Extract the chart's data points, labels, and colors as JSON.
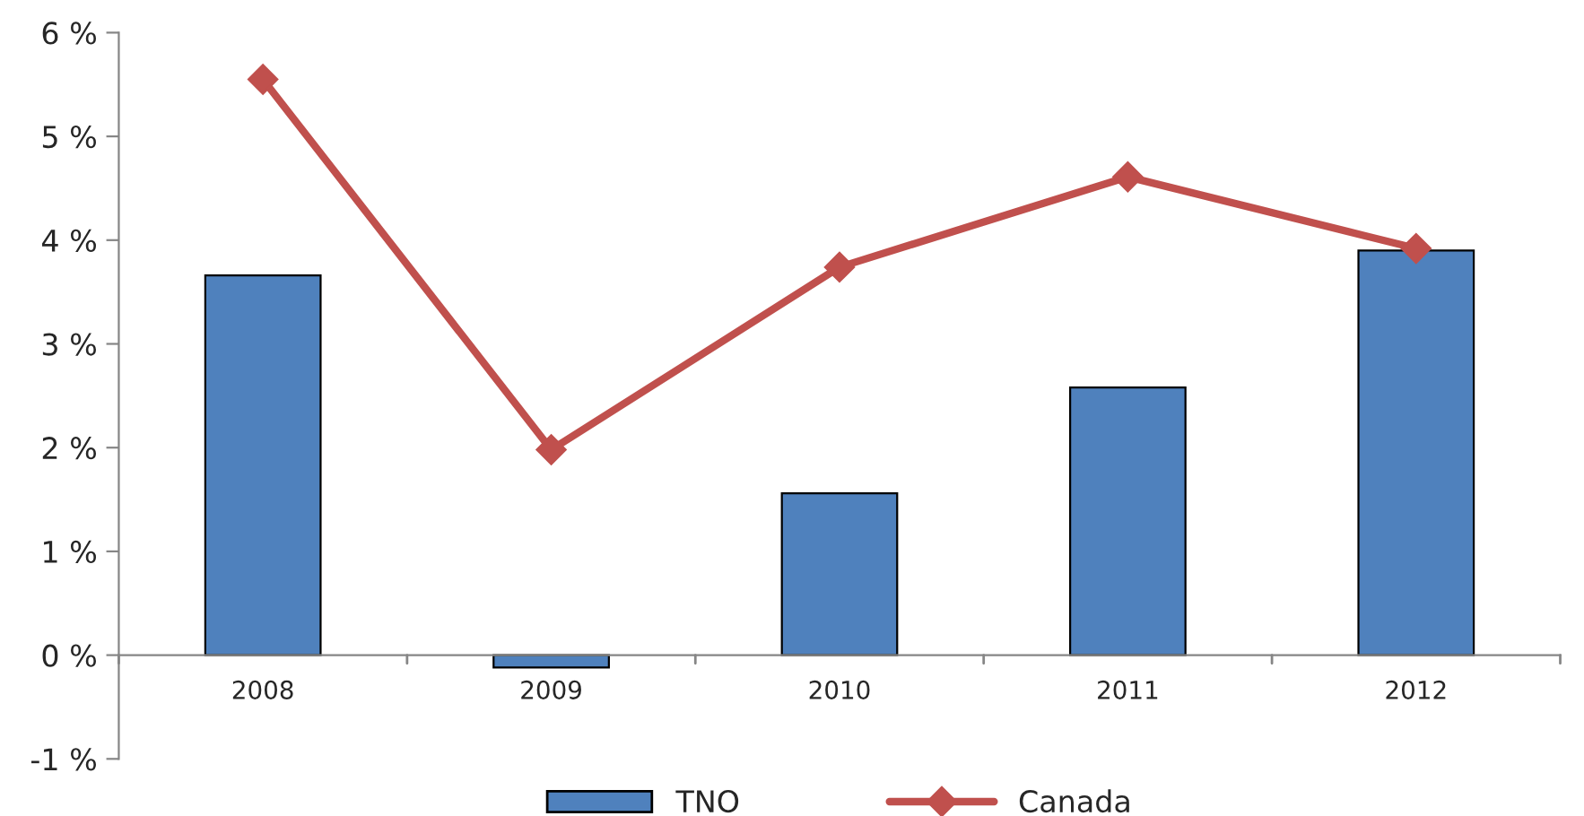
{
  "chart_data": {
    "type": "bar",
    "categories": [
      "2008",
      "2009",
      "2010",
      "2011",
      "2012"
    ],
    "series": [
      {
        "name": "TNO",
        "color": "#4f81bd",
        "values": [
          3.66,
          -0.12,
          1.56,
          2.58,
          3.9
        ]
      },
      {
        "name": "Canada",
        "type": "line",
        "color": "#c0504d",
        "marker": "diamond",
        "values": [
          5.55,
          1.98,
          3.74,
          4.61,
          3.92
        ]
      }
    ],
    "ylim": [
      -1,
      6
    ],
    "yticks": [
      {
        "value": -1,
        "label": "-1 %"
      },
      {
        "value": 0,
        "label": "0 %"
      },
      {
        "value": 1,
        "label": "1 %"
      },
      {
        "value": 2,
        "label": "2 %"
      },
      {
        "value": 3,
        "label": "3 %"
      },
      {
        "value": 4,
        "label": "4 %"
      },
      {
        "value": 5,
        "label": "5 %"
      },
      {
        "value": 6,
        "label": "6 %"
      }
    ],
    "grid": false,
    "legend": "bottom"
  }
}
